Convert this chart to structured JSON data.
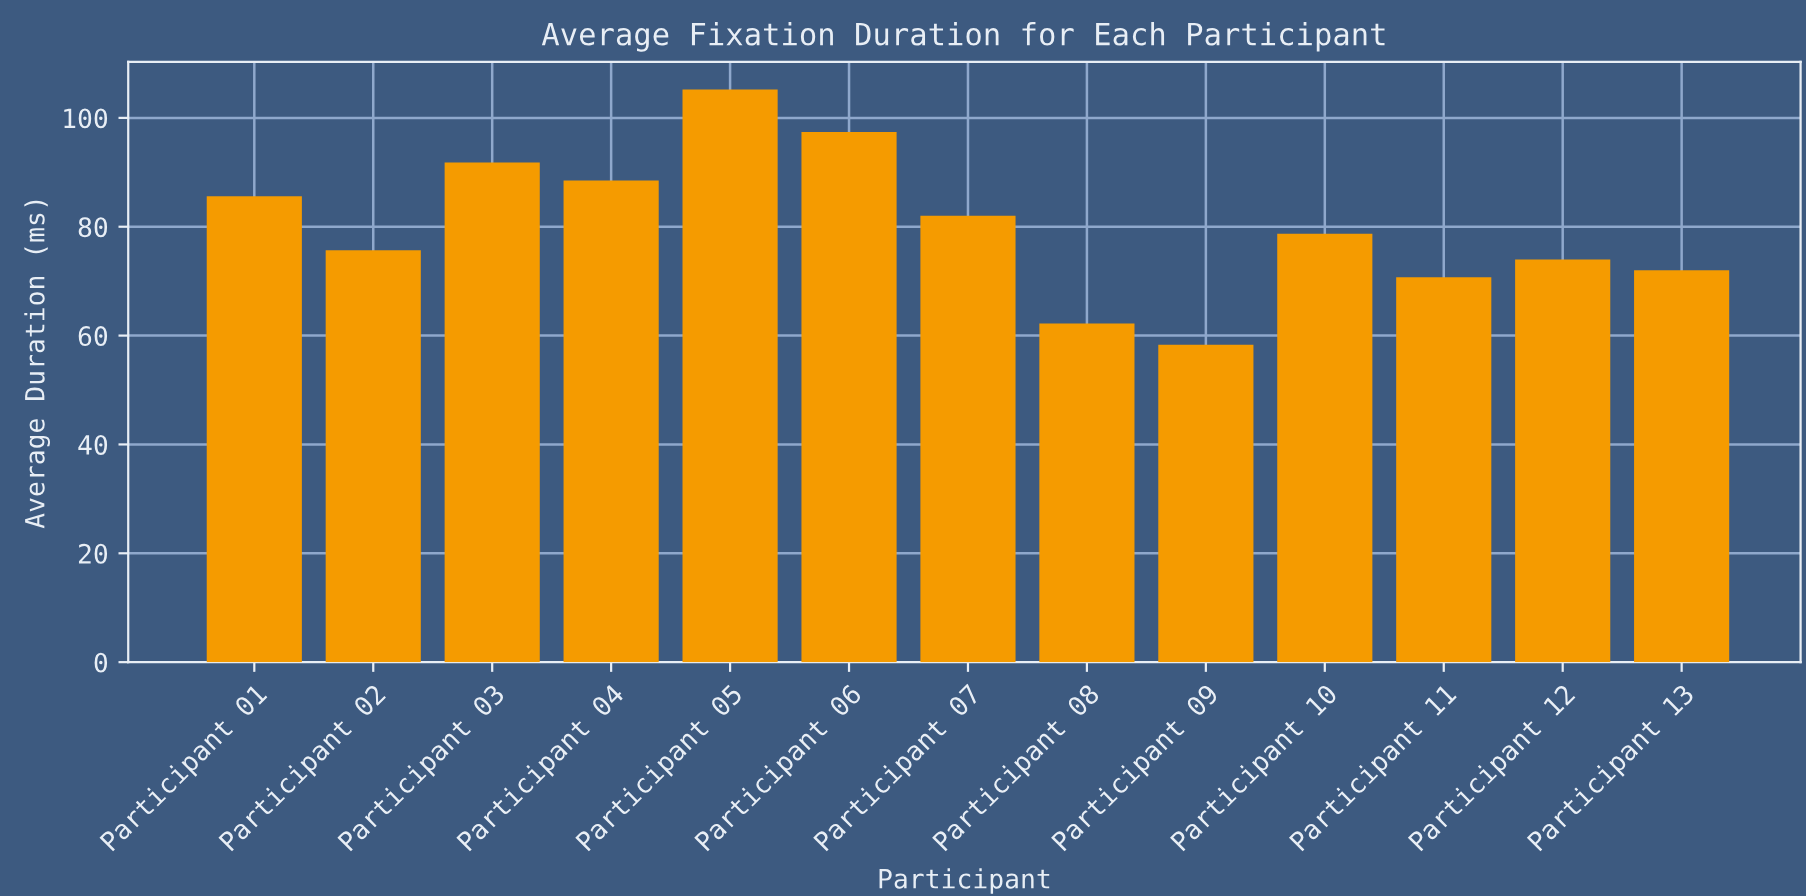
{
  "chart_data": {
    "type": "bar",
    "title": "Average Fixation Duration for Each Participant",
    "xlabel": "Participant",
    "ylabel": "Average Duration (ms)",
    "categories": [
      "Participant 01",
      "Participant 02",
      "Participant 03",
      "Participant 04",
      "Participant 05",
      "Participant 06",
      "Participant 07",
      "Participant 08",
      "Participant 09",
      "Participant 10",
      "Participant 11",
      "Participant 12",
      "Participant 13"
    ],
    "values": [
      85.6,
      75.7,
      91.8,
      88.5,
      105.2,
      97.4,
      82.0,
      62.2,
      58.3,
      78.7,
      70.7,
      74.0,
      72.0
    ],
    "color": "#f59b00",
    "ylim": [
      0,
      110.3
    ],
    "yticks": [
      0,
      20,
      40,
      60,
      80,
      100
    ],
    "grid": true
  }
}
